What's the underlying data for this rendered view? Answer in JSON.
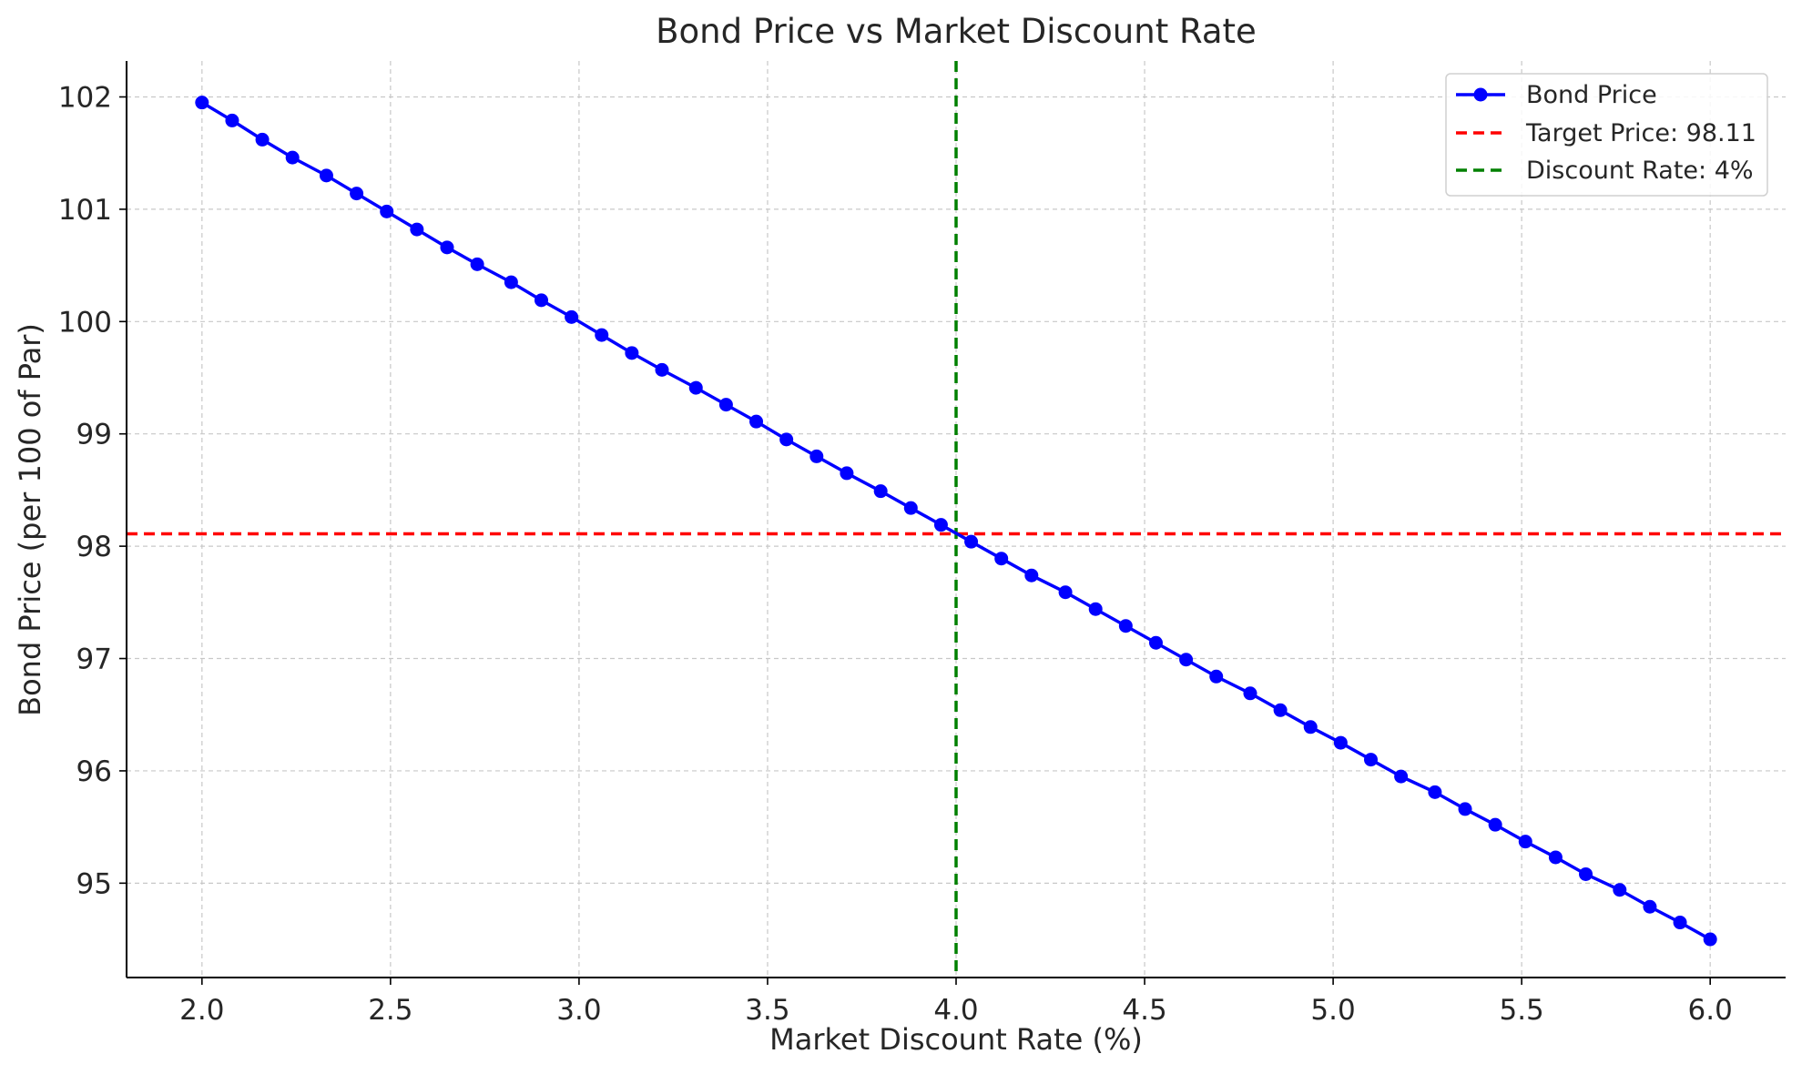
{
  "chart_data": {
    "type": "line",
    "title": "Bond Price vs Market Discount Rate",
    "xlabel": "Market Discount Rate (%)",
    "ylabel": "Bond Price (per 100 of Par)",
    "xlim": [
      1.8,
      6.2
    ],
    "ylim": [
      94.16,
      102.32
    ],
    "xticks": [
      2.0,
      2.5,
      3.0,
      3.5,
      4.0,
      4.5,
      5.0,
      5.5,
      6.0
    ],
    "yticks": [
      95,
      96,
      97,
      98,
      99,
      100,
      101,
      102
    ],
    "grid": true,
    "legend_position": "top-right",
    "series": [
      {
        "name": "Bond Price",
        "color": "#0000ff",
        "marker": "circle",
        "x": [
          2.0,
          2.08,
          2.16,
          2.24,
          2.33,
          2.41,
          2.49,
          2.57,
          2.65,
          2.73,
          2.82,
          2.9,
          2.98,
          3.06,
          3.14,
          3.22,
          3.31,
          3.39,
          3.47,
          3.55,
          3.63,
          3.71,
          3.8,
          3.88,
          3.96,
          4.04,
          4.12,
          4.2,
          4.29,
          4.37,
          4.45,
          4.53,
          4.61,
          4.69,
          4.78,
          4.86,
          4.94,
          5.02,
          5.1,
          5.18,
          5.27,
          5.35,
          5.43,
          5.51,
          5.59,
          5.67,
          5.76,
          5.84,
          5.92,
          6.0
        ],
        "values": [
          101.95,
          101.79,
          101.62,
          101.46,
          101.3,
          101.14,
          100.98,
          100.82,
          100.66,
          100.51,
          100.35,
          100.19,
          100.04,
          99.88,
          99.72,
          99.57,
          99.41,
          99.26,
          99.11,
          98.95,
          98.8,
          98.65,
          98.49,
          98.34,
          98.19,
          98.04,
          97.89,
          97.74,
          97.59,
          97.44,
          97.29,
          97.14,
          96.99,
          96.84,
          96.69,
          96.54,
          96.39,
          96.25,
          96.1,
          95.95,
          95.81,
          95.66,
          95.52,
          95.37,
          95.23,
          95.08,
          94.94,
          94.79,
          94.65,
          94.5
        ]
      }
    ],
    "reference_lines": [
      {
        "name": "Target Price: 98.11",
        "orientation": "horizontal",
        "value": 98.11,
        "color": "#ff0000",
        "style": "dashed"
      },
      {
        "name": "Discount Rate: 4%",
        "orientation": "vertical",
        "value": 4.0,
        "color": "#008000",
        "style": "dashed"
      }
    ]
  }
}
